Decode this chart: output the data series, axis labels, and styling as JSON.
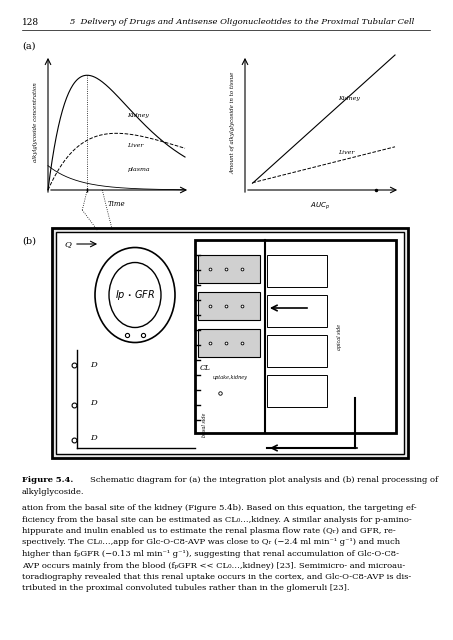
{
  "page_number": "128",
  "header_title": "5  Delivery of Drugs and Antisense Oligonucleotides to the Proximal Tubular Cell",
  "panel_a_label": "(a)",
  "panel_b_label": "(b)",
  "fig_caption_bold": "Figure 5.4.",
  "fig_caption_rest": "  Schematic diagram for (a) the integration plot analysis and (b) renal processing of\nalkylglycoside.",
  "body_text": "ation from the basal site of the kidney (Figure 5.4b). Based on this equation, the targeting ef-\nficiency from the basal site can be estimated as CL₀…,kidney. A similar analysis for p-amino-\nhippurate and inulin enabled us to estimate the renal plasma flow rate (Qᵣ) and GFR, re-\nspectively. The CL₀…,app for Glc-O-C8-AVP was close to Qᵣ (−2.4 ml min⁻¹ g⁻¹) and much\nhigher than fₚGFR (−0.13 ml min⁻¹ g⁻¹), suggesting that renal accumulation of Glc-O-C8-\nAVP occurs mainly from the blood (fₚGFR << CL₀…,kidney) [23]. Semimicro- and microau-\ntoradiography revealed that this renal uptake occurs in the cortex, and Glc-O-C8-AVP is dis-\ntributed in the proximal convoluted tubules rather than in the glomeruli [23].",
  "bg_color": "#ffffff",
  "text_color": "#000000"
}
